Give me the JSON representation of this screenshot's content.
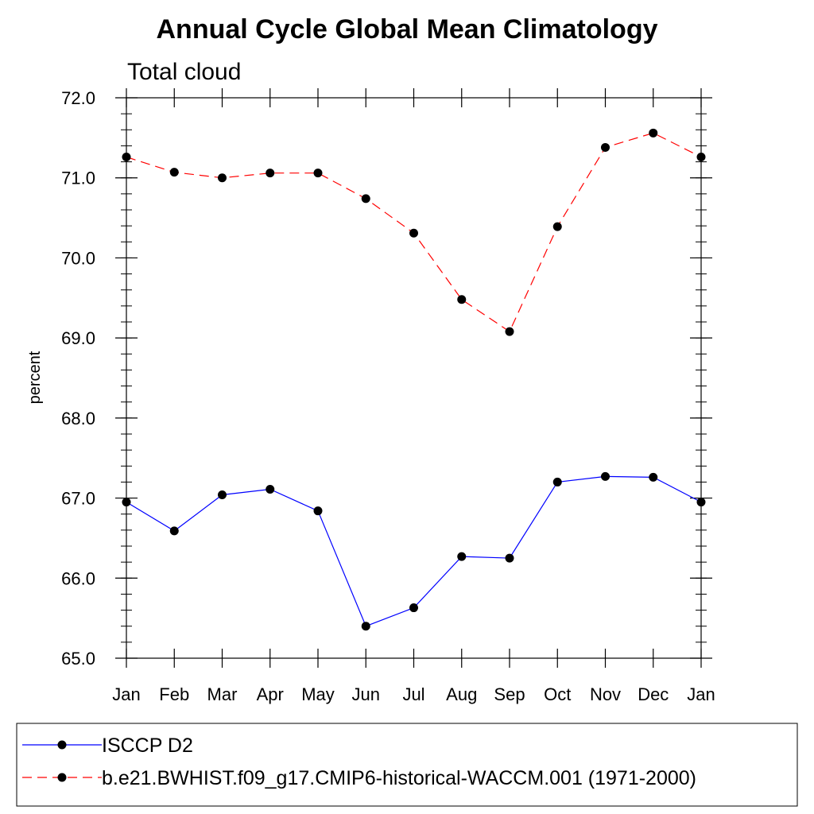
{
  "chart_data": {
    "type": "line",
    "title": "Annual Cycle Global Mean Climatology",
    "subtitle": "Total cloud",
    "xlabel": "",
    "ylabel": "percent",
    "categories": [
      "Jan",
      "Feb",
      "Mar",
      "Apr",
      "May",
      "Jun",
      "Jul",
      "Aug",
      "Sep",
      "Oct",
      "Nov",
      "Dec",
      "Jan"
    ],
    "ylim": [
      65.0,
      72.0
    ],
    "y_ticks": [
      "65.0",
      "66.0",
      "67.0",
      "68.0",
      "69.0",
      "70.0",
      "71.0",
      "72.0"
    ],
    "grid": false,
    "legend_placement": "bottom",
    "series": [
      {
        "name": "ISCCP D2",
        "color": "#0000ff",
        "line_style": "solid",
        "marker": "filled-circle",
        "values": [
          66.95,
          66.59,
          67.04,
          67.11,
          66.84,
          65.4,
          65.63,
          66.27,
          66.25,
          67.2,
          67.27,
          67.26,
          66.95
        ]
      },
      {
        "name": "b.e21.BWHIST.f09_g17.CMIP6-historical-WACCM.001 (1971-2000)",
        "color": "#ff0000",
        "line_style": "dashed",
        "marker": "filled-circle",
        "values": [
          71.26,
          71.07,
          71.0,
          71.06,
          71.06,
          70.74,
          70.31,
          69.48,
          69.08,
          70.39,
          71.38,
          71.56,
          71.26
        ]
      }
    ]
  }
}
